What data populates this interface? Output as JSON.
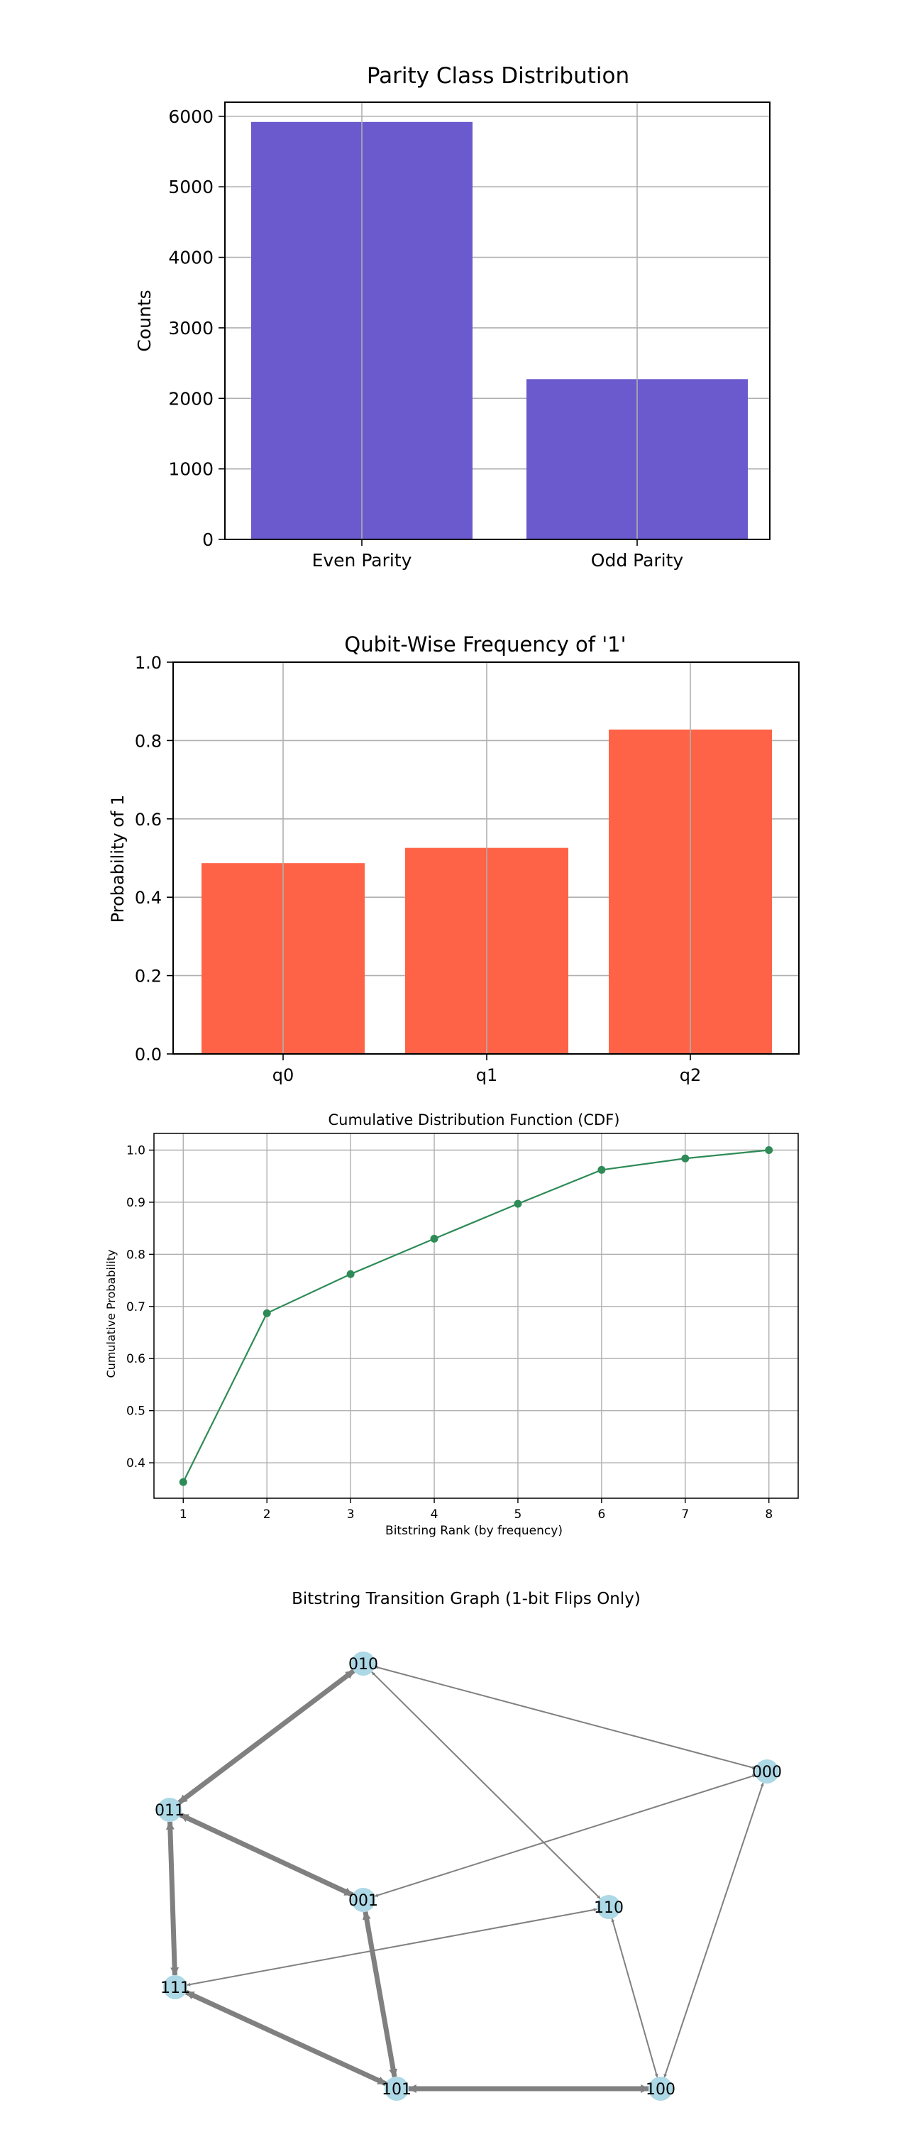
{
  "chart_data": [
    {
      "type": "bar",
      "title": "Parity Class Distribution",
      "xlabel": "",
      "ylabel": "Counts",
      "categories": [
        "Even Parity",
        "Odd Parity"
      ],
      "values": [
        5920,
        2272
      ],
      "ylim": [
        0,
        6200
      ],
      "yticks": [
        0,
        1000,
        2000,
        3000,
        4000,
        5000,
        6000
      ],
      "color": "#6a5acd",
      "grid": true
    },
    {
      "type": "bar",
      "title": "Qubit-Wise Frequency of '1'",
      "xlabel": "",
      "ylabel": "Probability of 1",
      "categories": [
        "q0",
        "q1",
        "q2"
      ],
      "values": [
        0.487,
        0.526,
        0.828
      ],
      "ylim": [
        0,
        1.0
      ],
      "yticks": [
        "0.0",
        "0.2",
        "0.4",
        "0.6",
        "0.8",
        "1.0"
      ],
      "color": "#ff6347",
      "grid": true
    },
    {
      "type": "line",
      "title": "Cumulative Distribution Function (CDF)",
      "xlabel": "Bitstring Rank (by frequency)",
      "ylabel": "Cumulative Probability",
      "x": [
        1,
        2,
        3,
        4,
        5,
        6,
        7,
        8
      ],
      "y": [
        0.363,
        0.687,
        0.762,
        0.83,
        0.897,
        0.962,
        0.984,
        1.0
      ],
      "xlim": [
        0.65,
        8.35
      ],
      "ylim": [
        0.332,
        1.032
      ],
      "xticks": [
        "1",
        "2",
        "3",
        "4",
        "5",
        "6",
        "7",
        "8"
      ],
      "yticks": [
        "0.4",
        "0.5",
        "0.6",
        "0.7",
        "0.8",
        "0.9",
        "1.0"
      ],
      "color": "#2e8b57",
      "grid": true
    },
    {
      "type": "graph",
      "title": "Bitstring Transition Graph (1-bit Flips Only)",
      "nodes": [
        "010",
        "000",
        "011",
        "001",
        "110",
        "111",
        "101",
        "100"
      ],
      "edges": [
        {
          "a": "010",
          "b": "011",
          "heavy": true
        },
        {
          "a": "011",
          "b": "001",
          "heavy": true
        },
        {
          "a": "011",
          "b": "111",
          "heavy": true
        },
        {
          "a": "001",
          "b": "101",
          "heavy": true
        },
        {
          "a": "111",
          "b": "101",
          "heavy": true
        },
        {
          "a": "101",
          "b": "100",
          "heavy": true
        },
        {
          "a": "010",
          "b": "000",
          "heavy": false
        },
        {
          "a": "010",
          "b": "110",
          "heavy": false
        },
        {
          "a": "000",
          "b": "001",
          "heavy": false
        },
        {
          "a": "000",
          "b": "100",
          "heavy": false
        },
        {
          "a": "110",
          "b": "111",
          "heavy": false
        },
        {
          "a": "110",
          "b": "100",
          "heavy": false
        }
      ],
      "node_color": "#add8e6",
      "edge_color": "#808080"
    }
  ]
}
